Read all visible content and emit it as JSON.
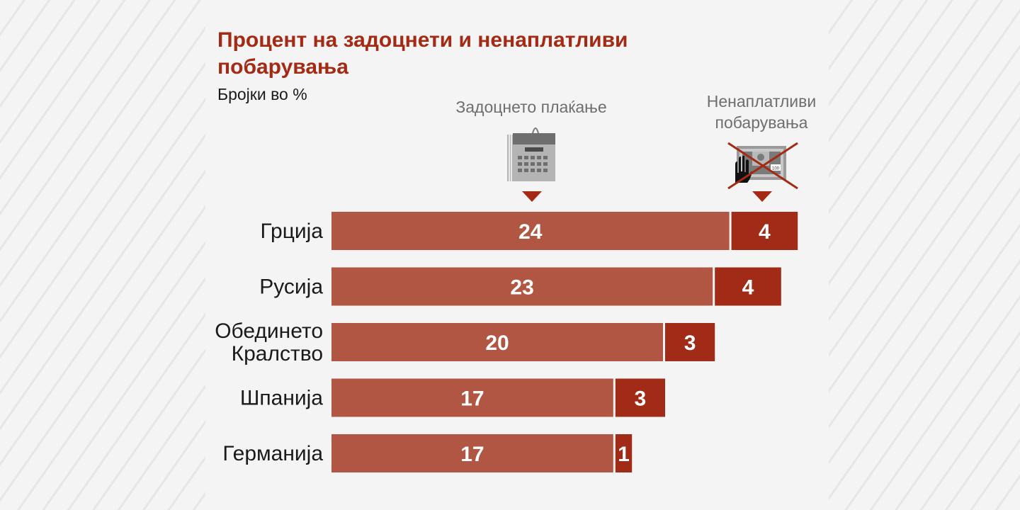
{
  "chart_data": {
    "type": "bar",
    "orientation": "horizontal",
    "stacked": true,
    "title": "Процент на задоцнети и ненаплатливи побарувања",
    "subtitle": "Бројки во %",
    "categories": [
      [
        "Грција"
      ],
      [
        "Русија"
      ],
      [
        "Обединето",
        "Кралство"
      ],
      [
        "Шпанија"
      ],
      [
        "Германија"
      ]
    ],
    "series": [
      {
        "name": "Задоцнето плаќање",
        "values": [
          24,
          23,
          20,
          17,
          17
        ],
        "color": "#b05643"
      },
      {
        "name": "Ненаплатливи побарувања",
        "values": [
          4,
          4,
          3,
          3,
          1
        ],
        "color": "#a12b16"
      }
    ],
    "legend_placement": "top"
  },
  "legend": {
    "late": {
      "label": "Задоцнето плаќање",
      "icon": "calendar-icon"
    },
    "bad": {
      "label_lines": [
        "Ненаплатливи",
        "побарувања"
      ],
      "icon": "crossed-out-banknote-hand-icon"
    }
  },
  "colors": {
    "title": "#a52a14",
    "marker": "#a52a14"
  }
}
